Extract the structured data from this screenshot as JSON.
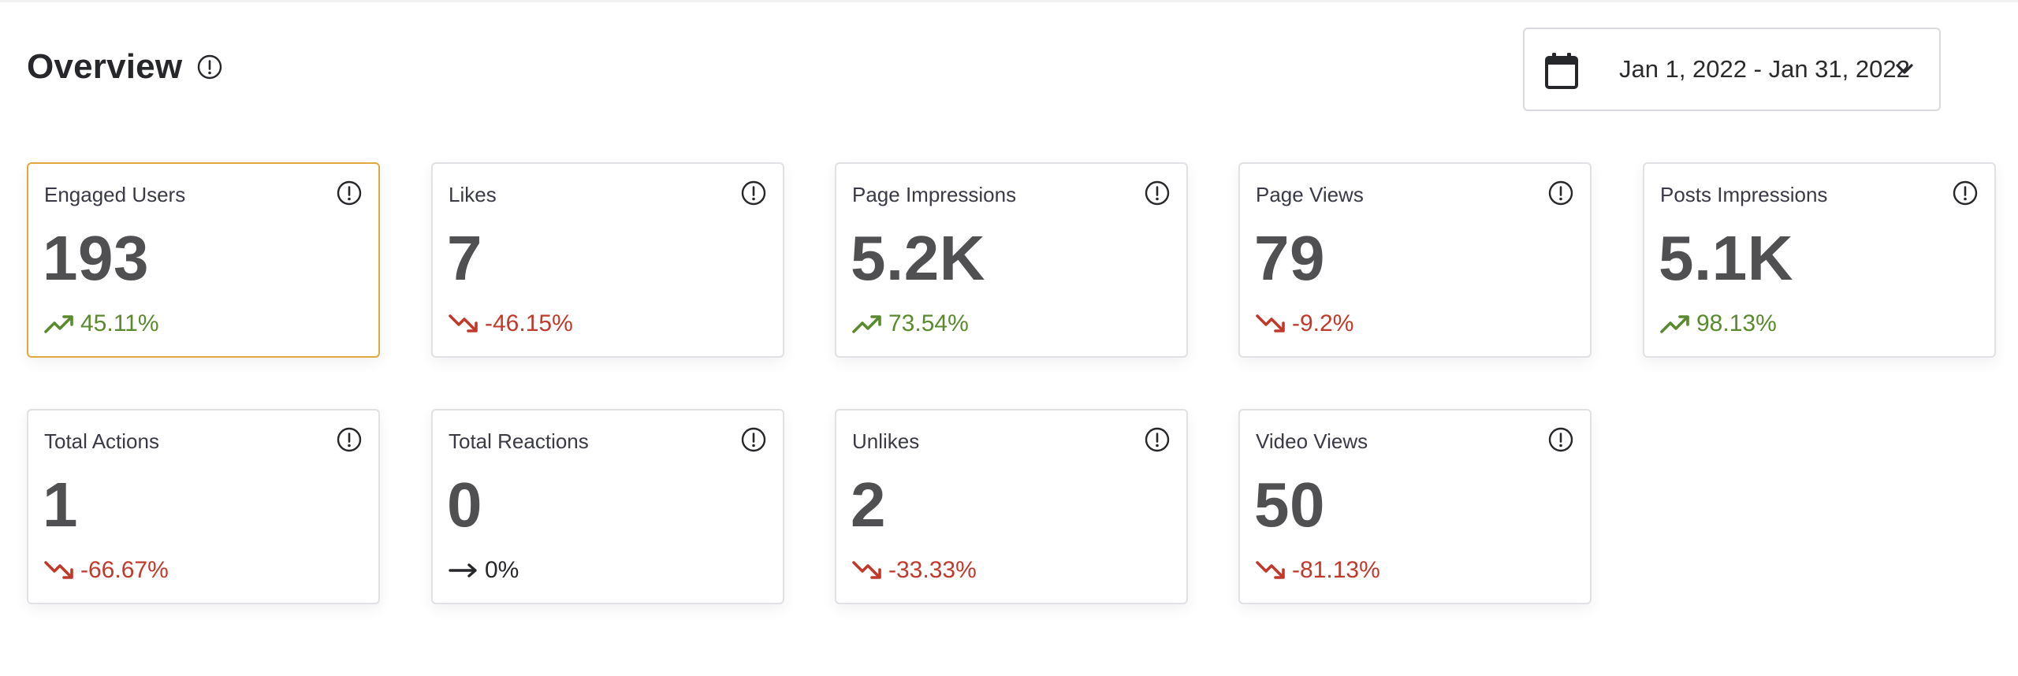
{
  "header": {
    "title": "Overview",
    "date_range": "Jan 1, 2022 - Jan 31, 2022"
  },
  "colors": {
    "up": "#5a8a2e",
    "down": "#c0392b",
    "selected_border": "#e0a83f"
  },
  "cards": [
    {
      "label": "Engaged Users",
      "value": "193",
      "change": "45.11%",
      "direction": "up",
      "selected": true
    },
    {
      "label": "Likes",
      "value": "7",
      "change": "-46.15%",
      "direction": "down"
    },
    {
      "label": "Page Impressions",
      "value": "5.2K",
      "change": "73.54%",
      "direction": "up"
    },
    {
      "label": "Page Views",
      "value": "79",
      "change": "-9.2%",
      "direction": "down"
    },
    {
      "label": "Posts Impressions",
      "value": "5.1K",
      "change": "98.13%",
      "direction": "up"
    },
    {
      "label": "Total Actions",
      "value": "1",
      "change": "-66.67%",
      "direction": "down"
    },
    {
      "label": "Total Reactions",
      "value": "0",
      "change": "0%",
      "direction": "flat"
    },
    {
      "label": "Unlikes",
      "value": "2",
      "change": "-33.33%",
      "direction": "down"
    },
    {
      "label": "Video Views",
      "value": "50",
      "change": "-81.13%",
      "direction": "down"
    }
  ]
}
